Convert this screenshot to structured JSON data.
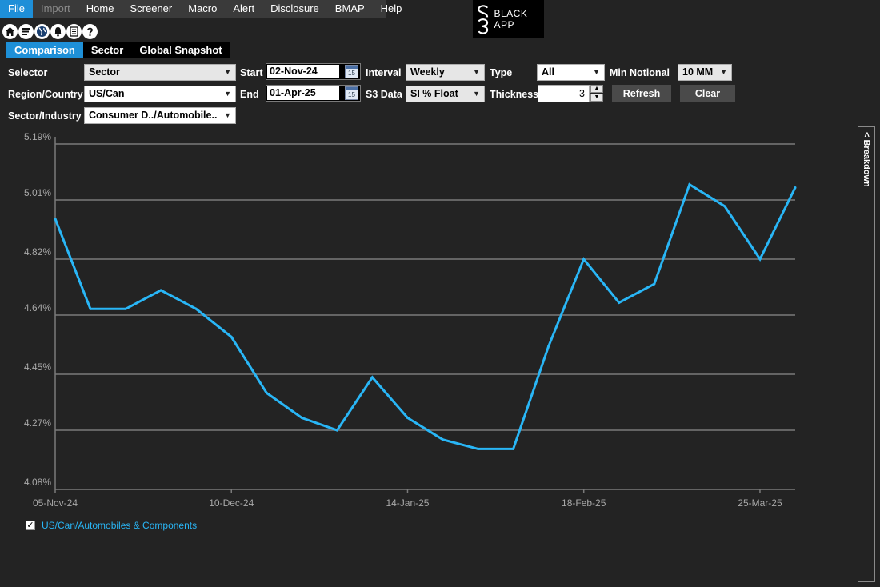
{
  "menu": {
    "items": [
      {
        "label": "File",
        "state": "active"
      },
      {
        "label": "Import",
        "state": "disabled"
      },
      {
        "label": "Home",
        "state": "normal"
      },
      {
        "label": "Screener",
        "state": "normal"
      },
      {
        "label": "Macro",
        "state": "normal"
      },
      {
        "label": "Alert",
        "state": "normal"
      },
      {
        "label": "Disclosure",
        "state": "normal"
      },
      {
        "label": "BMAP",
        "state": "normal"
      },
      {
        "label": "Help",
        "state": "normal"
      }
    ]
  },
  "logo": {
    "mark": "S3",
    "text": "BLACK APP"
  },
  "toolbar": {
    "icons": [
      "home-icon",
      "list-icon",
      "globe-icon",
      "bell-icon",
      "document-icon",
      "help-icon"
    ]
  },
  "tabs": [
    {
      "label": "Comparison",
      "active": true
    },
    {
      "label": "Sector",
      "active": false
    },
    {
      "label": "Global Snapshot",
      "active": false
    }
  ],
  "controls": {
    "selector_label": "Selector",
    "selector_value": "Sector",
    "region_label": "Region/Country",
    "region_value": "US/Can",
    "sector_label": "Sector/Industry",
    "sector_value": "Consumer D../Automobile..",
    "start_label": "Start",
    "start_value": "02-Nov-24",
    "end_label": "End",
    "end_value": "01-Apr-25",
    "calendar_day": "15",
    "interval_label": "Interval",
    "interval_value": "Weekly",
    "s3data_label": "S3 Data",
    "s3data_value": "SI % Float",
    "type_label": "Type",
    "type_value": "All",
    "thickness_label": "Thickness",
    "thickness_value": "3",
    "min_notional_label": "Min Notional",
    "min_notional_value": "10 MM",
    "refresh_label": "Refresh",
    "clear_label": "Clear"
  },
  "breakdown": {
    "label": "< Breakdown"
  },
  "legend": {
    "checked": true,
    "label": "US/Can/Automobiles & Components"
  },
  "chart_data": {
    "type": "line",
    "y_ticks": [
      "5.19%",
      "5.01%",
      "4.82%",
      "4.64%",
      "4.45%",
      "4.27%",
      "4.08%"
    ],
    "y_tick_values": [
      5.19,
      5.01,
      4.82,
      4.64,
      4.45,
      4.27,
      4.08
    ],
    "ylim": [
      4.08,
      5.19
    ],
    "x_ticks": [
      "05-Nov-24",
      "10-Dec-24",
      "14-Jan-25",
      "18-Feb-25",
      "25-Mar-25"
    ],
    "grid": true,
    "series": [
      {
        "name": "US/Can/Automobiles & Components",
        "color": "#29b6f6",
        "x": [
          "05-Nov-24",
          "12-Nov-24",
          "19-Nov-24",
          "26-Nov-24",
          "03-Dec-24",
          "10-Dec-24",
          "17-Dec-24",
          "24-Dec-24",
          "31-Dec-24",
          "07-Jan-25",
          "14-Jan-25",
          "21-Jan-25",
          "28-Jan-25",
          "04-Feb-25",
          "11-Feb-25",
          "18-Feb-25",
          "25-Feb-25",
          "04-Mar-25",
          "11-Mar-25",
          "18-Mar-25",
          "25-Mar-25",
          "01-Apr-25"
        ],
        "values": [
          4.95,
          4.66,
          4.66,
          4.72,
          4.66,
          4.57,
          4.39,
          4.31,
          4.27,
          4.44,
          4.31,
          4.24,
          4.21,
          4.21,
          4.54,
          4.82,
          4.68,
          4.74,
          5.06,
          4.99,
          4.82,
          5.05
        ]
      }
    ]
  }
}
